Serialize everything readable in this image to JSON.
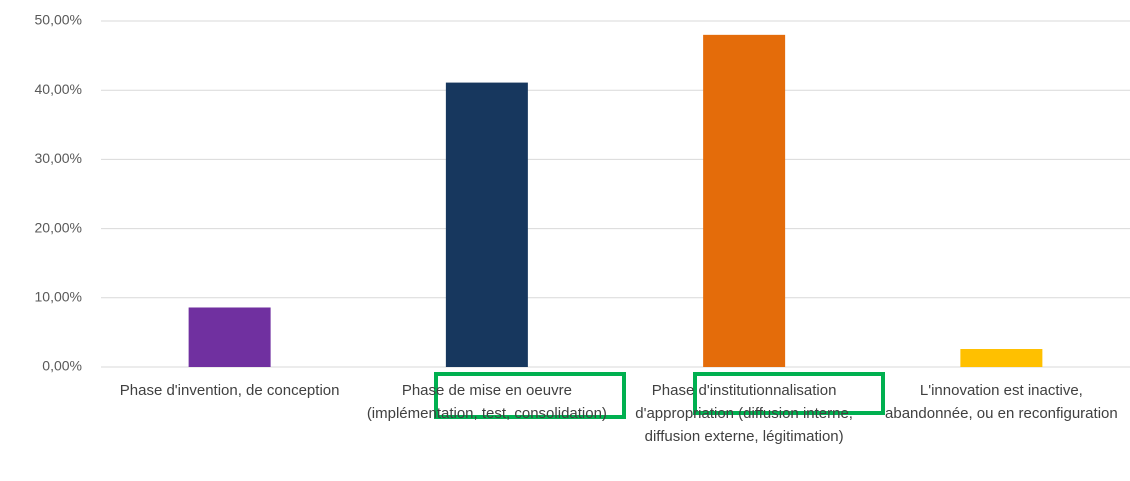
{
  "chart_data": {
    "type": "bar",
    "categories": [
      "Phase d'invention, de conception",
      "Phase de mise en oeuvre (implémentation, test, consolidation)",
      "Phase d'institutionnalisation d'appropriation (diffusion interne, diffusion externe, légitimation)",
      "L'innovation est inactive, abandonnée, ou en reconfiguration"
    ],
    "values": [
      8.6,
      41.1,
      48,
      2.6
    ],
    "colors": [
      "#7030a0",
      "#17375e",
      "#e46c0a",
      "#ffc000"
    ],
    "ylim": [
      0,
      50
    ],
    "yticks": [
      {
        "value": 0,
        "label": "0,00%"
      },
      {
        "value": 10,
        "label": "10,00%"
      },
      {
        "value": 20,
        "label": "20,00%"
      },
      {
        "value": 30,
        "label": "30,00%"
      },
      {
        "value": 40,
        "label": "40,00%"
      },
      {
        "value": 50,
        "label": "50,00%"
      }
    ],
    "grid": true
  }
}
